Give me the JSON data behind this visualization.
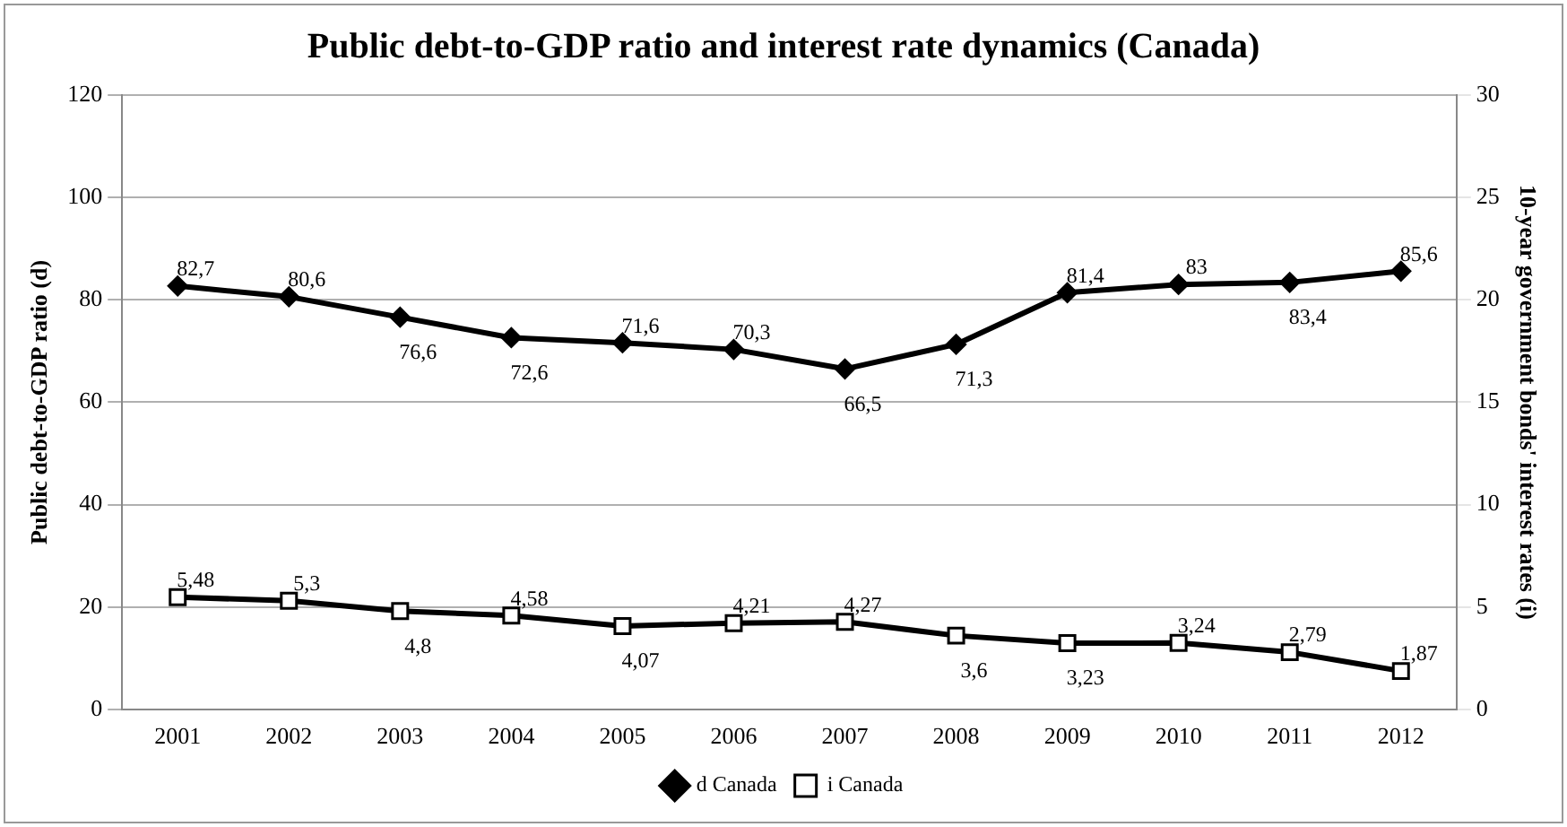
{
  "chart_data": {
    "type": "line",
    "title": "Public debt-to-GDP ratio and interest rate dynamics (Canada)",
    "ylabel": "Public debt-to-GDP ratio (d)",
    "y2label": "10-year government bonds' interest rates (i)",
    "categories": [
      "2001",
      "2002",
      "2003",
      "2004",
      "2005",
      "2006",
      "2007",
      "2008",
      "2009",
      "2010",
      "2011",
      "2012"
    ],
    "series": [
      {
        "name": "d Canada",
        "color": "#000000",
        "marker": "diamond",
        "values": [
          82.7,
          80.6,
          76.6,
          72.6,
          71.6,
          70.3,
          66.5,
          71.3,
          81.4,
          83,
          83.4,
          85.6
        ],
        "value_labels": [
          "82,7",
          "80,6",
          "76,6",
          "72,6",
          "71,6",
          "70,3",
          "66,5",
          "71,3",
          "81,4",
          "83",
          "83,4",
          "85,6"
        ]
      },
      {
        "name": "i Canada",
        "color": "#000000",
        "marker": "square",
        "axis": "y2",
        "values": [
          5.48,
          5.3,
          4.8,
          4.58,
          4.07,
          4.21,
          4.27,
          3.6,
          3.23,
          3.24,
          2.79,
          1.87
        ],
        "value_labels": [
          "5,48",
          "5,3",
          "4,8",
          "4,58",
          "4,07",
          "4,21",
          "4,27",
          "3,6",
          "3,23",
          "3,24",
          "2,79",
          "1,87"
        ]
      }
    ],
    "ylim": [
      0,
      120
    ],
    "yticks": [
      0,
      20,
      40,
      60,
      80,
      100,
      120
    ],
    "y2lim": [
      0,
      30
    ],
    "y2ticks": [
      0,
      5,
      10,
      15,
      20,
      25,
      30
    ],
    "grid": "y",
    "legend": "bottom",
    "line_style": "solid"
  }
}
